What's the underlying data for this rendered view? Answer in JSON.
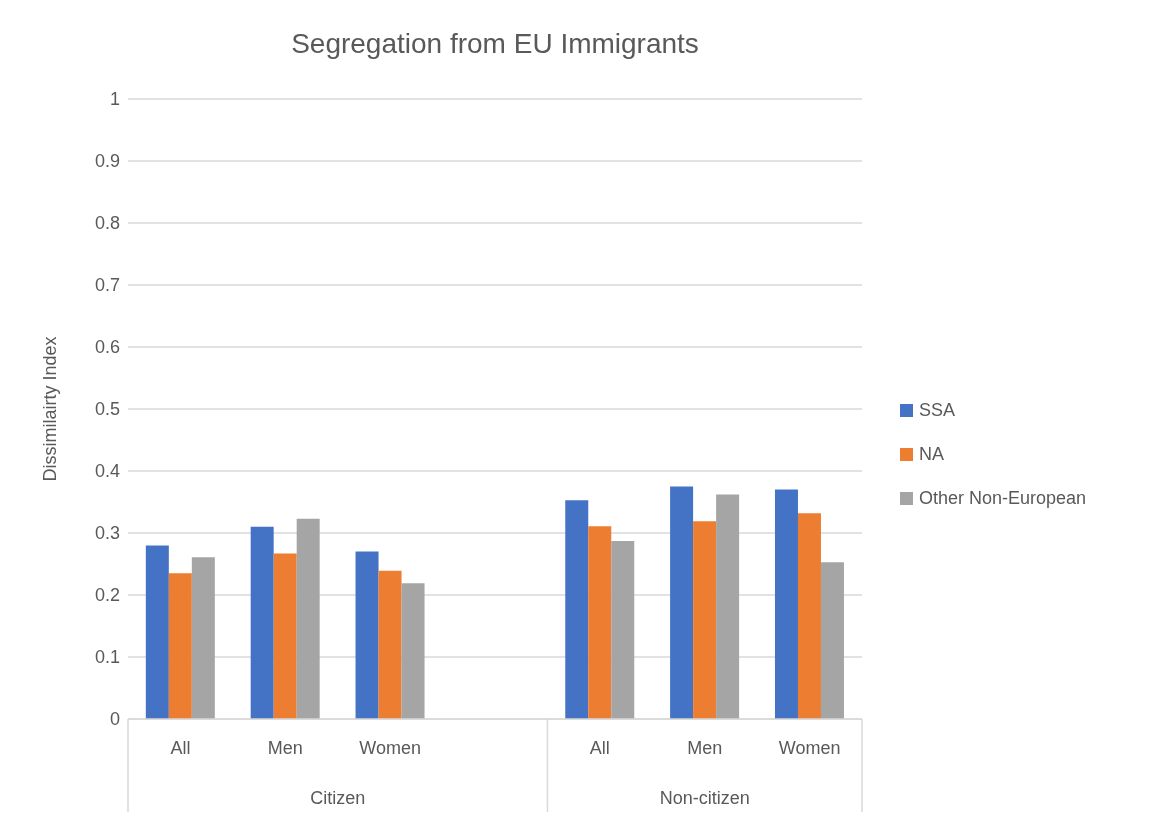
{
  "chart_data": {
    "type": "bar",
    "title": "Segregation from EU Immigrants",
    "ylabel": "Dissimilairty Index",
    "categories": [
      "All",
      "Men",
      "Women",
      null,
      "All",
      "Men",
      "Women"
    ],
    "series": [
      {
        "name": "SSA",
        "color": "#4472c4",
        "values": [
          0.28,
          0.31,
          0.27,
          null,
          0.353,
          0.375,
          0.37
        ]
      },
      {
        "name": "NA",
        "color": "#ed7d31",
        "values": [
          0.235,
          0.267,
          0.239,
          null,
          0.311,
          0.319,
          0.332
        ]
      },
      {
        "name": "Other Non-European",
        "color": "#a5a5a5",
        "values": [
          0.261,
          0.323,
          0.219,
          null,
          0.287,
          0.362,
          0.253
        ]
      }
    ],
    "annotations": [
      "Citizen",
      "Non-citizen"
    ],
    "ylim": [
      0,
      1
    ],
    "yticks": [
      0,
      0.1,
      0.2,
      0.3,
      0.4,
      0.5,
      0.6,
      0.7,
      0.8,
      0.9,
      1
    ],
    "grid": "y",
    "legend": "right"
  }
}
